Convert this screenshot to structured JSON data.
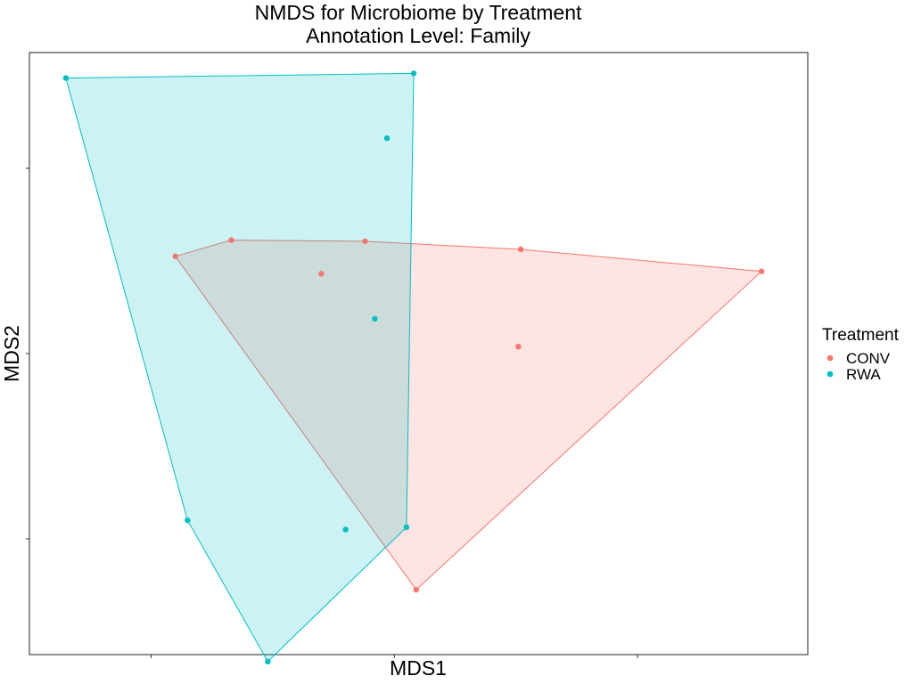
{
  "chart_data": {
    "type": "scatter",
    "title": "NMDS for Microbiome by Treatment",
    "subtitle": "Annotation Level: Family",
    "xlabel": "MDS1",
    "ylabel": "MDS2",
    "xlim": [
      -1.5,
      1.7
    ],
    "ylim": [
      -1.3,
      1.3
    ],
    "x_ticks": [
      -1.0,
      0.0,
      1.0
    ],
    "y_ticks": [
      -0.8,
      0.0,
      0.8
    ],
    "show_tick_labels": false,
    "grid": false,
    "legend": {
      "title": "Treatment",
      "position": "right"
    },
    "series": [
      {
        "name": "CONV",
        "color": "#F8766D",
        "points": [
          {
            "x": -0.9,
            "y": 0.42
          },
          {
            "x": -0.67,
            "y": 0.49
          },
          {
            "x": -0.12,
            "y": 0.485
          },
          {
            "x": 0.52,
            "y": 0.45
          },
          {
            "x": 1.51,
            "y": 0.355
          },
          {
            "x": -0.3,
            "y": 0.345
          },
          {
            "x": 0.51,
            "y": 0.03
          },
          {
            "x": 0.09,
            "y": -1.02
          }
        ],
        "hull": [
          0,
          1,
          2,
          3,
          4,
          7
        ]
      },
      {
        "name": "RWA",
        "color": "#00BFC4",
        "points": [
          {
            "x": -1.35,
            "y": 1.19
          },
          {
            "x": 0.08,
            "y": 1.21
          },
          {
            "x": -0.03,
            "y": 0.93
          },
          {
            "x": -0.08,
            "y": 0.15
          },
          {
            "x": -0.85,
            "y": -0.72
          },
          {
            "x": -0.2,
            "y": -0.76
          },
          {
            "x": 0.05,
            "y": -0.75
          },
          {
            "x": -0.52,
            "y": -1.33
          }
        ],
        "hull": [
          0,
          1,
          6,
          7,
          4
        ]
      }
    ]
  }
}
